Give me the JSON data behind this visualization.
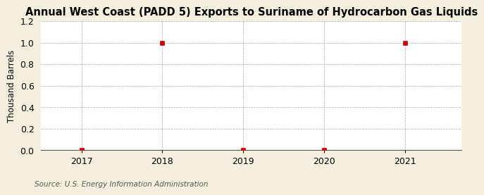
{
  "title": "Annual West Coast (PADD 5) Exports to Suriname of Hydrocarbon Gas Liquids",
  "ylabel": "Thousand Barrels",
  "source": "Source: U.S. Energy Information Administration",
  "x": [
    2017,
    2018,
    2019,
    2020,
    2021
  ],
  "y": [
    0,
    1,
    0,
    0,
    1
  ],
  "xlim": [
    2016.5,
    2021.7
  ],
  "ylim": [
    0,
    1.2
  ],
  "yticks": [
    0.0,
    0.2,
    0.4,
    0.6,
    0.8,
    1.0,
    1.2
  ],
  "xticks": [
    2017,
    2018,
    2019,
    2020,
    2021
  ],
  "outer_background": "#f5f0de",
  "plot_background": "#ffffff",
  "marker_color": "#cc0000",
  "marker_style": "s",
  "marker_size": 4,
  "grid_color": "#aaaaaa",
  "title_fontsize": 10.5,
  "axis_fontsize": 8.5,
  "tick_fontsize": 9,
  "source_fontsize": 7.5
}
